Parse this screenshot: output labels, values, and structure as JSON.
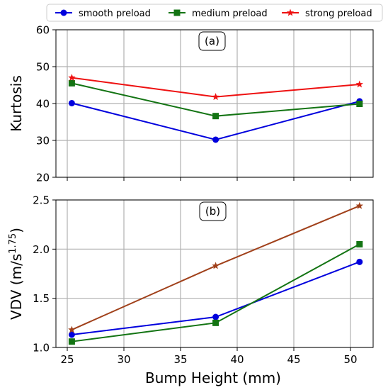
{
  "chart_data": [
    {
      "type": "line",
      "panel_label": "(a)",
      "ylabel": "Kurtosis",
      "xlabel": "",
      "x": [
        25.4,
        38.1,
        50.8
      ],
      "xlim": [
        24,
        52
      ],
      "xticks": [
        25,
        30,
        35,
        40,
        45,
        50
      ],
      "ylim": [
        20,
        60
      ],
      "yticks": [
        20,
        30,
        40,
        50,
        60
      ],
      "grid": true,
      "series": [
        {
          "name": "smooth preload",
          "color": "#0000dd",
          "marker": "circle",
          "values": [
            40.1,
            30.2,
            40.6
          ]
        },
        {
          "name": "medium preload",
          "color": "#137413",
          "marker": "square",
          "values": [
            45.5,
            36.6,
            39.9
          ]
        },
        {
          "name": "strong preload",
          "color": "#ee1111",
          "marker": "star",
          "values": [
            47.0,
            41.8,
            45.2
          ]
        }
      ]
    },
    {
      "type": "line",
      "panel_label": "(b)",
      "ylabel": "VDV (m/s^1.75)",
      "xlabel": "Bump Height (mm)",
      "x": [
        25.4,
        38.1,
        50.8
      ],
      "xlim": [
        24,
        52
      ],
      "xticks": [
        25,
        30,
        35,
        40,
        45,
        50
      ],
      "ylim": [
        1.0,
        2.5
      ],
      "yticks": [
        "1.0",
        "1.5",
        "2.0",
        "2.5"
      ],
      "grid": true,
      "series": [
        {
          "name": "smooth preload",
          "color": "#0000dd",
          "marker": "circle",
          "values": [
            1.13,
            1.31,
            1.87
          ]
        },
        {
          "name": "medium preload",
          "color": "#137413",
          "marker": "square",
          "values": [
            1.06,
            1.25,
            2.05
          ]
        },
        {
          "name": "strong preload",
          "color": "#a0401a",
          "marker": "star",
          "values": [
            1.18,
            1.83,
            2.44
          ]
        }
      ]
    }
  ],
  "legend": {
    "placement": "top-center",
    "entries": [
      {
        "label": "smooth preload",
        "color": "#0000dd",
        "marker": "circle"
      },
      {
        "label": "medium preload",
        "color": "#137413",
        "marker": "square"
      },
      {
        "label": "strong preload",
        "color": "#ee1111",
        "marker": "star"
      }
    ]
  },
  "vdv_label": {
    "base": "VDV (m/s",
    "exp": "1.75",
    "close": ")"
  }
}
